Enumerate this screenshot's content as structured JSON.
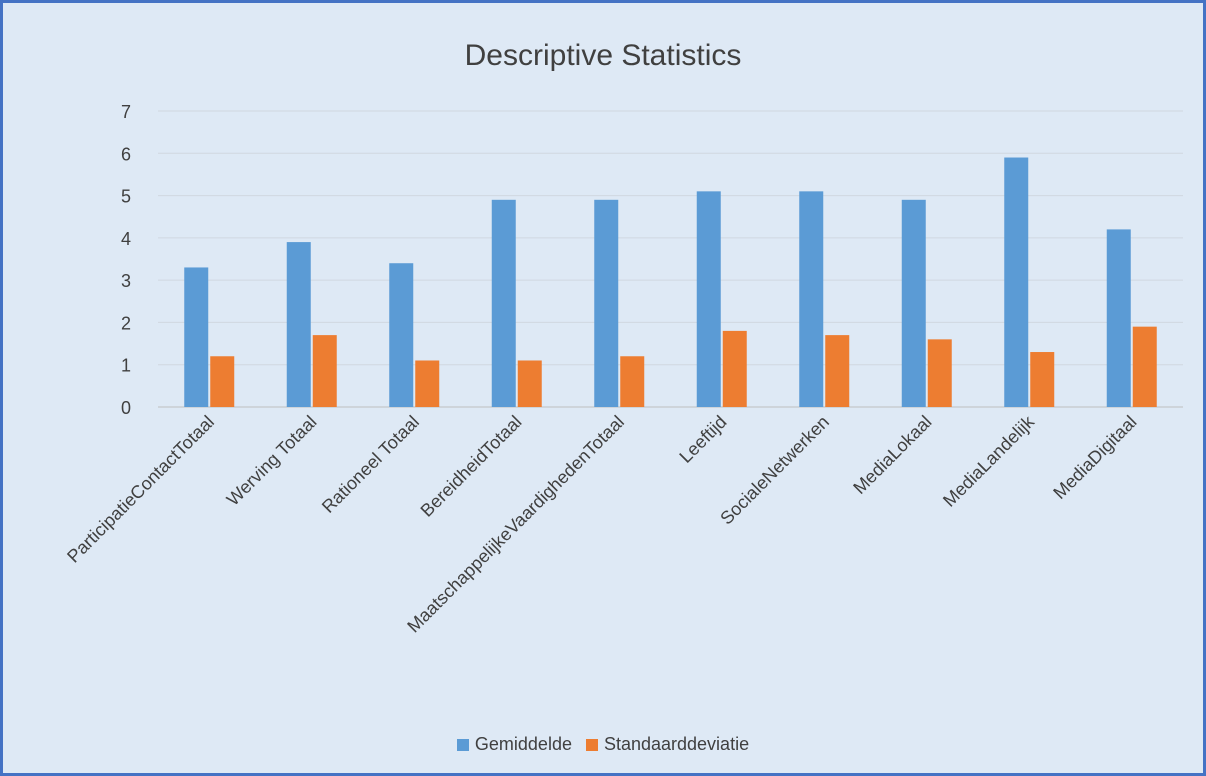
{
  "chart_data": {
    "type": "bar",
    "title": "Descriptive Statistics",
    "xlabel": "",
    "ylabel": "",
    "ylim": [
      0,
      7
    ],
    "yticks": [
      0,
      1,
      2,
      3,
      4,
      5,
      6,
      7
    ],
    "grid": true,
    "legend_position": "bottom",
    "categories": [
      "ParticipatieContactTotaal",
      "Werving Totaal",
      "Rationeel Totaal",
      "BereidheidTotaal",
      "MaatschappelijkeVaardighedenTotaal",
      "Leeftijd",
      "SocialeNetwerken",
      "MediaLokaal",
      "MediaLandelijk",
      "MediaDigitaal"
    ],
    "series": [
      {
        "name": "Gemiddelde",
        "color": "#5b9bd5",
        "values": [
          3.3,
          3.9,
          3.4,
          4.9,
          4.9,
          5.1,
          5.1,
          4.9,
          5.9,
          4.2
        ]
      },
      {
        "name": "Standaarddeviatie",
        "color": "#ed7d31",
        "values": [
          1.2,
          1.7,
          1.1,
          1.1,
          1.2,
          1.8,
          1.7,
          1.6,
          1.3,
          1.9
        ]
      }
    ]
  }
}
